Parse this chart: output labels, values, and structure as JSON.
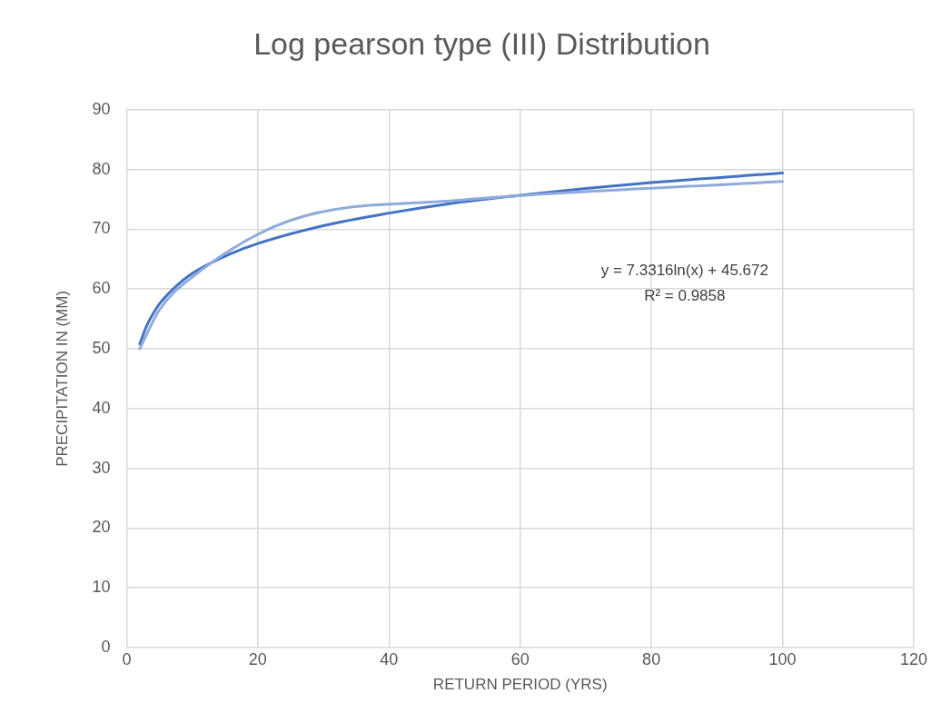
{
  "chart_data": {
    "type": "line",
    "title": "Log pearson type (III) Distribution",
    "xlabel": "RETURN PERIOD (YRS)",
    "ylabel": "PRECIPITATION IN (MM)",
    "x": [
      2,
      5,
      10,
      25,
      50,
      100
    ],
    "series": [
      {
        "color": "#8faadc",
        "values": [
          50,
          56.5,
          62,
          71.5,
          74.8,
          78
        ]
      },
      {
        "type": "line",
        "color": "#4472c4",
        "x": [
          2,
          3,
          4,
          5,
          7,
          10,
          15,
          20,
          30,
          40,
          50,
          60,
          80,
          100
        ],
        "values": [
          50.8,
          53.7,
          55.8,
          57.5,
          59.9,
          62.6,
          65.5,
          67.6,
          70.6,
          72.7,
          74.4,
          75.7,
          77.8,
          79.4
        ]
      }
    ],
    "xlim": [
      0,
      120
    ],
    "xticks": [
      0,
      20,
      40,
      60,
      80,
      100,
      120
    ],
    "ylim": [
      0,
      90
    ],
    "yticks": [
      0,
      10,
      20,
      30,
      40,
      50,
      60,
      70,
      80,
      90
    ],
    "grid": true,
    "legend": false,
    "marker": "none",
    "line_style": "solid",
    "annotations": [
      "y = 7.3316ln(x) + 45.672",
      "R² = 0.9858"
    ]
  }
}
